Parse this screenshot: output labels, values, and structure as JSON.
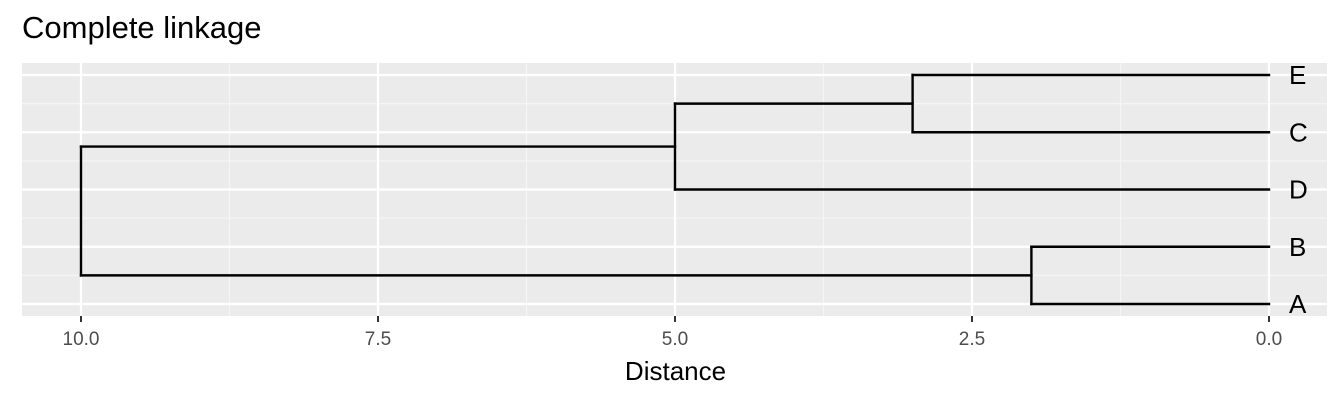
{
  "title": "Complete linkage",
  "chart_data": {
    "type": "dendrogram",
    "title": "Complete linkage",
    "xlabel": "Distance",
    "ylabel": "",
    "x_reversed": true,
    "xlim": [
      10.25,
      0
    ],
    "x_ticks": [
      10.0,
      7.5,
      5.0,
      2.5,
      0.0
    ],
    "x_tick_labels": [
      "10.0",
      "7.5",
      "5.0",
      "2.5",
      "0.0"
    ],
    "grid": true,
    "legend": "none",
    "leaves": [
      "E",
      "C",
      "D",
      "B",
      "A"
    ],
    "merges": [
      {
        "left": "E",
        "right": "C",
        "height": 3.0
      },
      {
        "left": "E,C",
        "right": "D",
        "height": 5.0
      },
      {
        "left": "B",
        "right": "A",
        "height": 2.0
      },
      {
        "left": "E,C,D",
        "right": "B,A",
        "height": 10.0
      }
    ]
  },
  "colors": {
    "panel_background": "#ebebeb",
    "grid_major": "#ffffff",
    "grid_minor": "#f5f5f5",
    "segment": "#000000",
    "tick_label": "#4d4d4d"
  }
}
